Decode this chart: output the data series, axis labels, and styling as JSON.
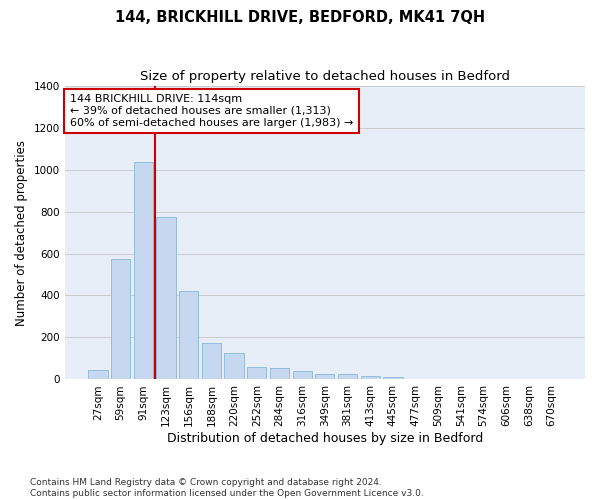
{
  "title": "144, BRICKHILL DRIVE, BEDFORD, MK41 7QH",
  "subtitle": "Size of property relative to detached houses in Bedford",
  "xlabel": "Distribution of detached houses by size in Bedford",
  "ylabel": "Number of detached properties",
  "categories": [
    "27sqm",
    "59sqm",
    "91sqm",
    "123sqm",
    "156sqm",
    "188sqm",
    "220sqm",
    "252sqm",
    "284sqm",
    "316sqm",
    "349sqm",
    "381sqm",
    "413sqm",
    "445sqm",
    "477sqm",
    "509sqm",
    "541sqm",
    "574sqm",
    "606sqm",
    "638sqm",
    "670sqm"
  ],
  "values": [
    45,
    575,
    1035,
    775,
    420,
    175,
    125,
    58,
    55,
    42,
    27,
    25,
    18,
    10,
    0,
    0,
    0,
    0,
    0,
    0,
    0
  ],
  "bar_color": "#c5d8f0",
  "bar_edge_color": "#7aadd4",
  "vline_x": 2.5,
  "vline_color": "#cc0000",
  "annotation_line1": "144 BRICKHILL DRIVE: 114sqm",
  "annotation_line2": "← 39% of detached houses are smaller (1,313)",
  "annotation_line3": "60% of semi-detached houses are larger (1,983) →",
  "annotation_box_color": "#ffffff",
  "annotation_box_edge_color": "#cc0000",
  "ylim": [
    0,
    1400
  ],
  "yticks": [
    0,
    200,
    400,
    600,
    800,
    1000,
    1200,
    1400
  ],
  "grid_color": "#cccccc",
  "background_color": "#e8eef8",
  "footnote": "Contains HM Land Registry data © Crown copyright and database right 2024.\nContains public sector information licensed under the Open Government Licence v3.0.",
  "title_fontsize": 10.5,
  "subtitle_fontsize": 9.5,
  "xlabel_fontsize": 9,
  "ylabel_fontsize": 8.5,
  "tick_fontsize": 7.5,
  "annotation_fontsize": 8,
  "footnote_fontsize": 6.5
}
